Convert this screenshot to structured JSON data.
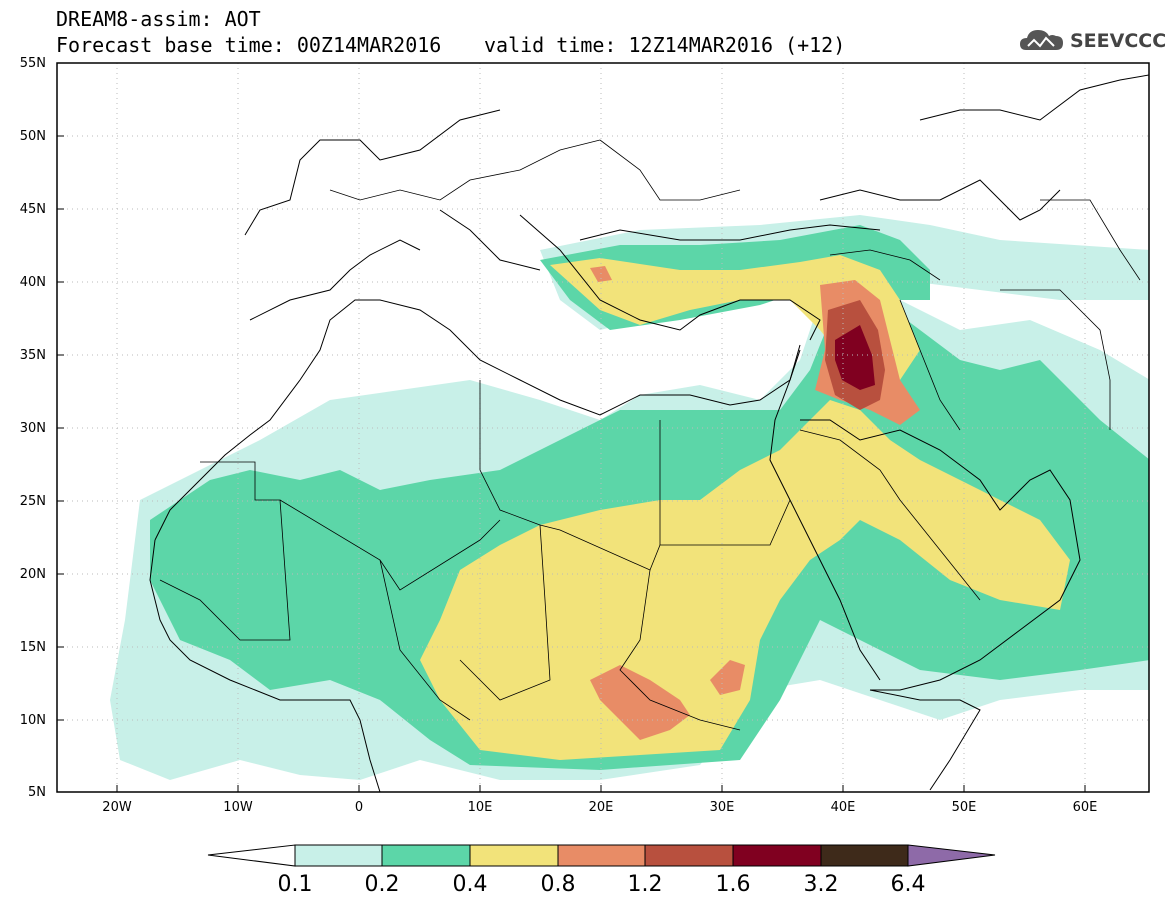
{
  "header": {
    "title_line1": "DREAM8-assim: AOT",
    "title_line2": "Forecast base time: 00Z14MAR2016",
    "valid_time": "valid time: 12Z14MAR2016 (+12)",
    "logo_text": "SEEVCCC"
  },
  "map": {
    "lat_labels": [
      "55N",
      "50N",
      "45N",
      "40N",
      "35N",
      "30N",
      "25N",
      "20N",
      "15N",
      "10N",
      "5N"
    ],
    "lon_labels": [
      "20W",
      "10W",
      "0",
      "10E",
      "20E",
      "30E",
      "40E",
      "50E",
      "60E"
    ],
    "extent": {
      "lon_min": -25,
      "lon_max": 65,
      "lat_min": 5,
      "lat_max": 55
    },
    "features": [
      "continent outlines",
      "country borders",
      "dust aerosol optical thickness shading"
    ]
  },
  "colorbar": {
    "labels": [
      "0.1",
      "0.2",
      "0.4",
      "0.8",
      "1.2",
      "1.6",
      "3.2",
      "6.4"
    ],
    "colors": [
      "#ffffff",
      "#c8f0e8",
      "#5cd6a8",
      "#f2e37a",
      "#e88c66",
      "#b8503e",
      "#800020",
      "#3e2a1a",
      "#8e6aa8"
    ]
  }
}
